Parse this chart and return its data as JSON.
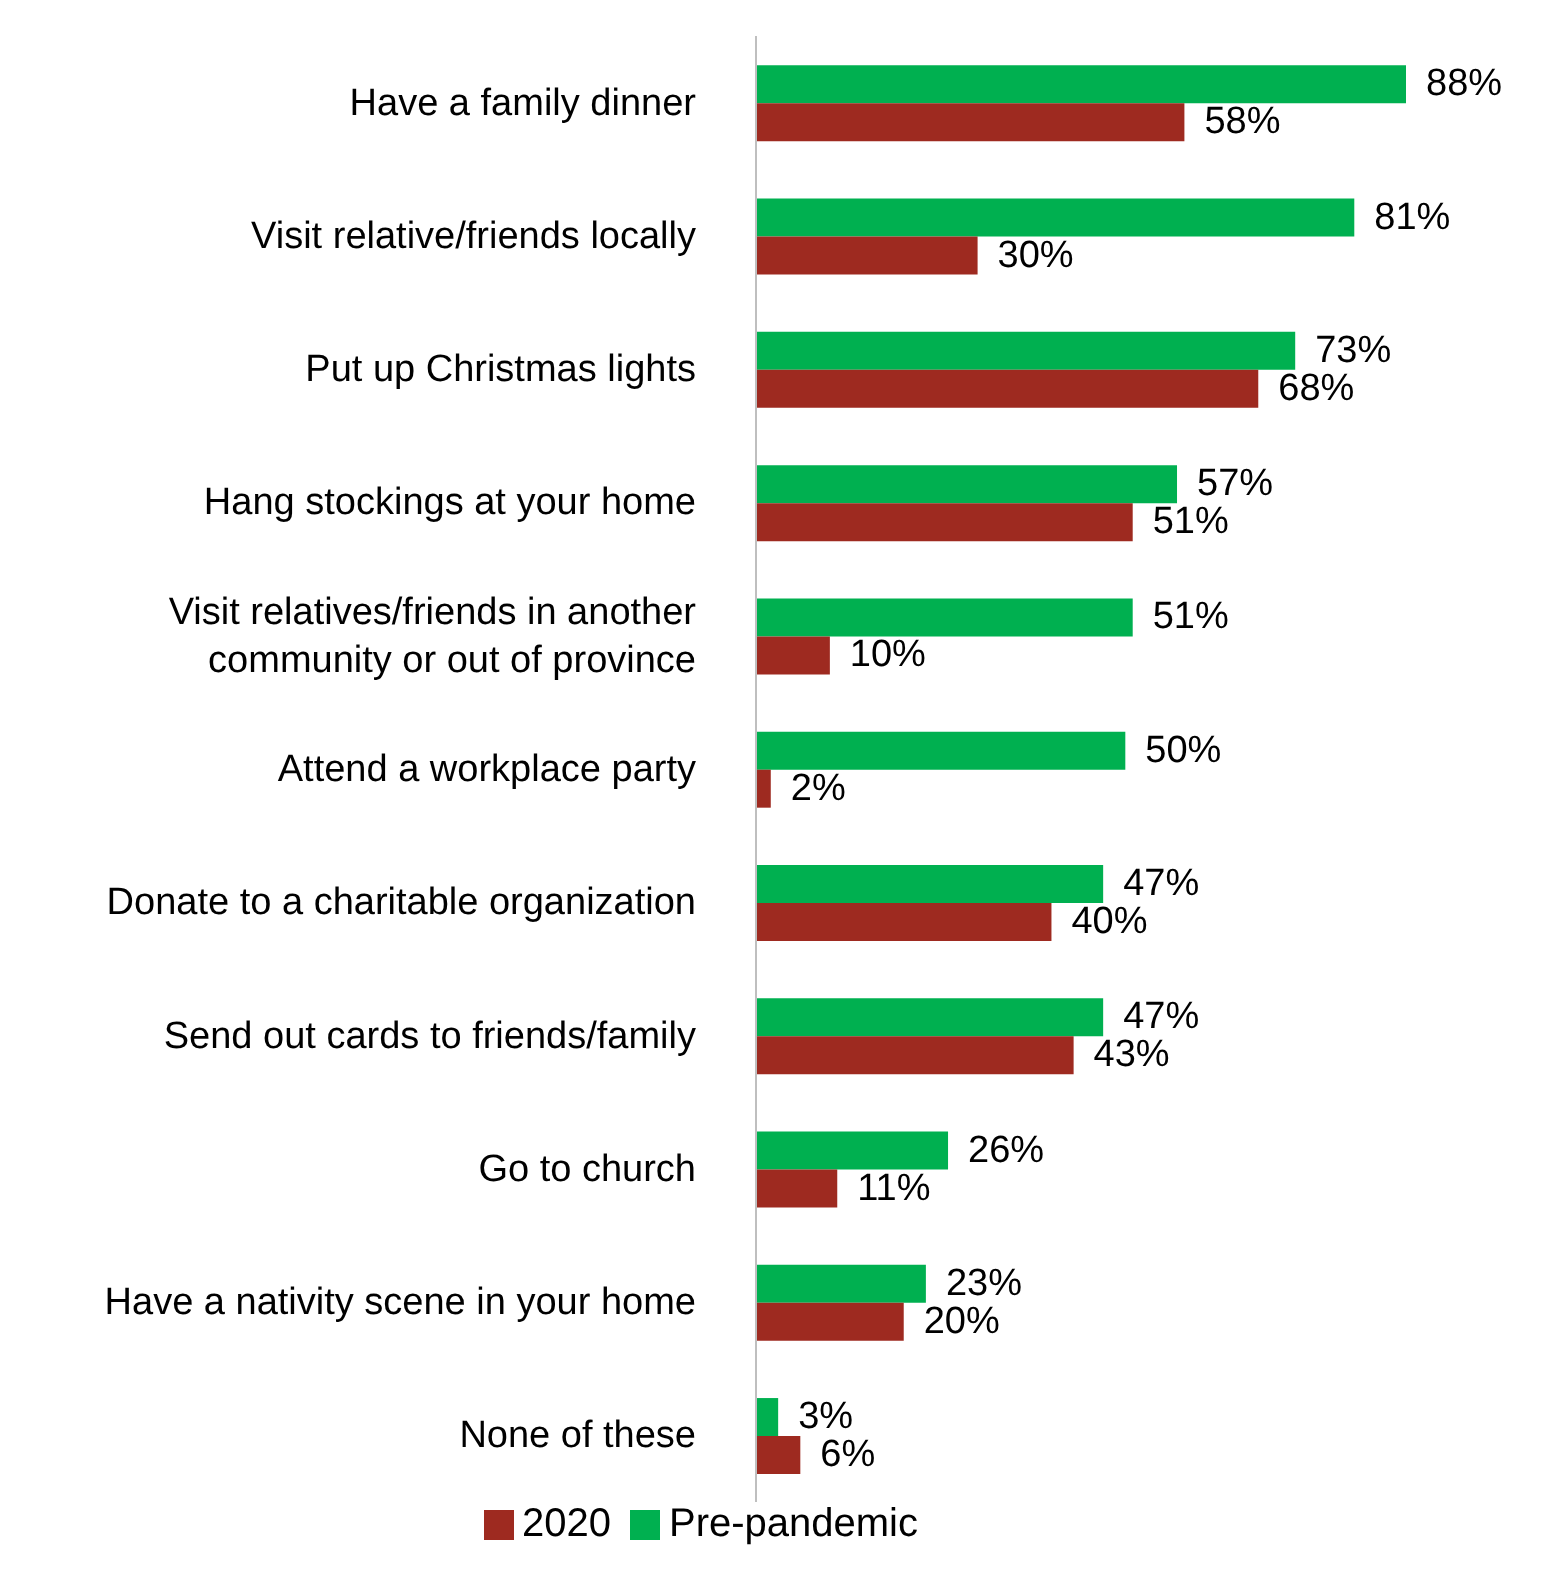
{
  "chart_data": {
    "type": "bar",
    "orientation": "horizontal",
    "categories": [
      "Have a family dinner",
      "Visit relative/friends locally",
      "Put up Christmas lights",
      "Hang stockings at your home",
      "Visit relatives/friends in another community or out of province",
      "Attend a workplace party",
      "Donate to a charitable organization",
      "Send out cards to friends/family",
      "Go to church",
      "Have a nativity scene in your home",
      "None of these"
    ],
    "series": [
      {
        "name": "Pre-pandemic",
        "color": "#00b050",
        "values": [
          88,
          81,
          73,
          57,
          51,
          50,
          47,
          47,
          26,
          23,
          3
        ],
        "value_labels": [
          "88%",
          "81%",
          "73%",
          "57%",
          "51%",
          "50%",
          "47%",
          "47%",
          "26%",
          "23%",
          "3%"
        ]
      },
      {
        "name": "2020",
        "color": "#9e2a20",
        "values": [
          58,
          30,
          68,
          51,
          10,
          2,
          40,
          43,
          11,
          20,
          6
        ],
        "value_labels": [
          "58%",
          "30%",
          "68%",
          "51%",
          "10%",
          "2%",
          "40%",
          "43%",
          "11%",
          "20%",
          "6%"
        ]
      }
    ],
    "legend": "bottom"
  }
}
